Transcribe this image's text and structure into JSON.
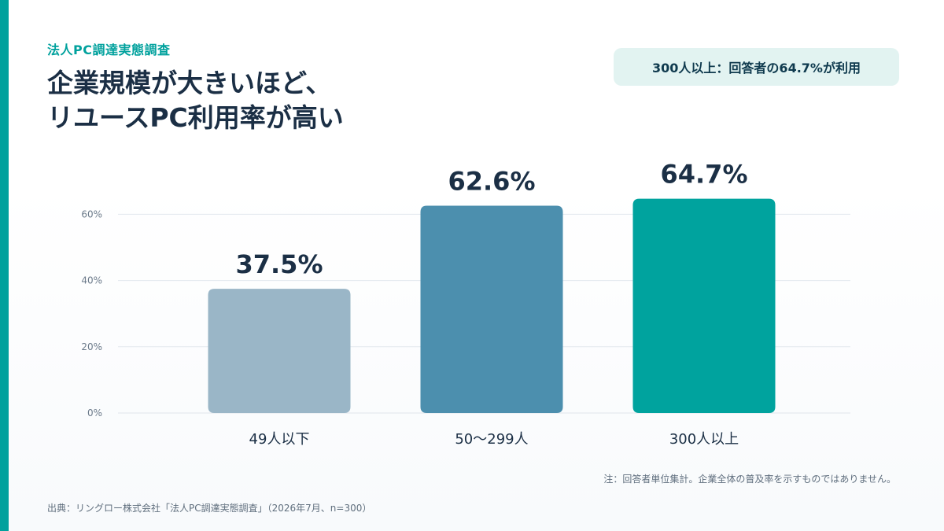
{
  "header": {
    "eyebrow": "法人PC調達実態調査",
    "headline_line1": "企業規模が大きいほど、",
    "headline_line2": "リユースPC利用率が高い",
    "callout": "300人以上：回答者の64.7%が利用"
  },
  "colors": {
    "accent": "#00a19d",
    "bar_small": "#9ab6c7",
    "bar_mid": "#4c8fae",
    "bar_large": "#00a39e",
    "callout_bg": "#e2f3f1",
    "text_dark": "#1b2f45"
  },
  "chart_data": {
    "type": "bar",
    "categories": [
      "49人以下",
      "50〜299人",
      "300人以上"
    ],
    "values": [
      37.5,
      62.6,
      64.7
    ],
    "value_labels": [
      "37.5%",
      "62.6%",
      "64.7%"
    ],
    "bar_colors": [
      "#9ab6c7",
      "#4c8fae",
      "#00a39e"
    ],
    "yticks": [
      0,
      20,
      40,
      60
    ],
    "ytick_labels": [
      "0%",
      "20%",
      "40%",
      "60%"
    ],
    "ylim": [
      0,
      60
    ],
    "grid": true,
    "legend": "none"
  },
  "footer": {
    "note": "注：回答者単位集計。企業全体の普及率を示すものではありません。",
    "source": "出典：リングロー株式会社「法人PC調達実態調査」（2026年7月、n=300）"
  }
}
